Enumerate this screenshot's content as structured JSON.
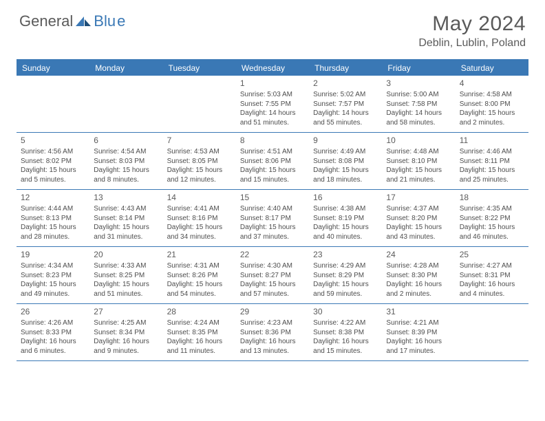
{
  "brand": {
    "general": "General",
    "blue": "Blu",
    "e": "e"
  },
  "title": "May 2024",
  "location": "Deblin, Lublin, Poland",
  "daynames": [
    "Sunday",
    "Monday",
    "Tuesday",
    "Wednesday",
    "Thursday",
    "Friday",
    "Saturday"
  ],
  "colors": {
    "accent": "#3a78b5",
    "text": "#4d4d4d",
    "heading": "#5a5a5a",
    "background": "#ffffff"
  },
  "weeks": [
    [
      null,
      null,
      null,
      {
        "n": "1",
        "sr": "Sunrise: 5:03 AM",
        "ss": "Sunset: 7:55 PM",
        "dl1": "Daylight: 14 hours",
        "dl2": "and 51 minutes."
      },
      {
        "n": "2",
        "sr": "Sunrise: 5:02 AM",
        "ss": "Sunset: 7:57 PM",
        "dl1": "Daylight: 14 hours",
        "dl2": "and 55 minutes."
      },
      {
        "n": "3",
        "sr": "Sunrise: 5:00 AM",
        "ss": "Sunset: 7:58 PM",
        "dl1": "Daylight: 14 hours",
        "dl2": "and 58 minutes."
      },
      {
        "n": "4",
        "sr": "Sunrise: 4:58 AM",
        "ss": "Sunset: 8:00 PM",
        "dl1": "Daylight: 15 hours",
        "dl2": "and 2 minutes."
      }
    ],
    [
      {
        "n": "5",
        "sr": "Sunrise: 4:56 AM",
        "ss": "Sunset: 8:02 PM",
        "dl1": "Daylight: 15 hours",
        "dl2": "and 5 minutes."
      },
      {
        "n": "6",
        "sr": "Sunrise: 4:54 AM",
        "ss": "Sunset: 8:03 PM",
        "dl1": "Daylight: 15 hours",
        "dl2": "and 8 minutes."
      },
      {
        "n": "7",
        "sr": "Sunrise: 4:53 AM",
        "ss": "Sunset: 8:05 PM",
        "dl1": "Daylight: 15 hours",
        "dl2": "and 12 minutes."
      },
      {
        "n": "8",
        "sr": "Sunrise: 4:51 AM",
        "ss": "Sunset: 8:06 PM",
        "dl1": "Daylight: 15 hours",
        "dl2": "and 15 minutes."
      },
      {
        "n": "9",
        "sr": "Sunrise: 4:49 AM",
        "ss": "Sunset: 8:08 PM",
        "dl1": "Daylight: 15 hours",
        "dl2": "and 18 minutes."
      },
      {
        "n": "10",
        "sr": "Sunrise: 4:48 AM",
        "ss": "Sunset: 8:10 PM",
        "dl1": "Daylight: 15 hours",
        "dl2": "and 21 minutes."
      },
      {
        "n": "11",
        "sr": "Sunrise: 4:46 AM",
        "ss": "Sunset: 8:11 PM",
        "dl1": "Daylight: 15 hours",
        "dl2": "and 25 minutes."
      }
    ],
    [
      {
        "n": "12",
        "sr": "Sunrise: 4:44 AM",
        "ss": "Sunset: 8:13 PM",
        "dl1": "Daylight: 15 hours",
        "dl2": "and 28 minutes."
      },
      {
        "n": "13",
        "sr": "Sunrise: 4:43 AM",
        "ss": "Sunset: 8:14 PM",
        "dl1": "Daylight: 15 hours",
        "dl2": "and 31 minutes."
      },
      {
        "n": "14",
        "sr": "Sunrise: 4:41 AM",
        "ss": "Sunset: 8:16 PM",
        "dl1": "Daylight: 15 hours",
        "dl2": "and 34 minutes."
      },
      {
        "n": "15",
        "sr": "Sunrise: 4:40 AM",
        "ss": "Sunset: 8:17 PM",
        "dl1": "Daylight: 15 hours",
        "dl2": "and 37 minutes."
      },
      {
        "n": "16",
        "sr": "Sunrise: 4:38 AM",
        "ss": "Sunset: 8:19 PM",
        "dl1": "Daylight: 15 hours",
        "dl2": "and 40 minutes."
      },
      {
        "n": "17",
        "sr": "Sunrise: 4:37 AM",
        "ss": "Sunset: 8:20 PM",
        "dl1": "Daylight: 15 hours",
        "dl2": "and 43 minutes."
      },
      {
        "n": "18",
        "sr": "Sunrise: 4:35 AM",
        "ss": "Sunset: 8:22 PM",
        "dl1": "Daylight: 15 hours",
        "dl2": "and 46 minutes."
      }
    ],
    [
      {
        "n": "19",
        "sr": "Sunrise: 4:34 AM",
        "ss": "Sunset: 8:23 PM",
        "dl1": "Daylight: 15 hours",
        "dl2": "and 49 minutes."
      },
      {
        "n": "20",
        "sr": "Sunrise: 4:33 AM",
        "ss": "Sunset: 8:25 PM",
        "dl1": "Daylight: 15 hours",
        "dl2": "and 51 minutes."
      },
      {
        "n": "21",
        "sr": "Sunrise: 4:31 AM",
        "ss": "Sunset: 8:26 PM",
        "dl1": "Daylight: 15 hours",
        "dl2": "and 54 minutes."
      },
      {
        "n": "22",
        "sr": "Sunrise: 4:30 AM",
        "ss": "Sunset: 8:27 PM",
        "dl1": "Daylight: 15 hours",
        "dl2": "and 57 minutes."
      },
      {
        "n": "23",
        "sr": "Sunrise: 4:29 AM",
        "ss": "Sunset: 8:29 PM",
        "dl1": "Daylight: 15 hours",
        "dl2": "and 59 minutes."
      },
      {
        "n": "24",
        "sr": "Sunrise: 4:28 AM",
        "ss": "Sunset: 8:30 PM",
        "dl1": "Daylight: 16 hours",
        "dl2": "and 2 minutes."
      },
      {
        "n": "25",
        "sr": "Sunrise: 4:27 AM",
        "ss": "Sunset: 8:31 PM",
        "dl1": "Daylight: 16 hours",
        "dl2": "and 4 minutes."
      }
    ],
    [
      {
        "n": "26",
        "sr": "Sunrise: 4:26 AM",
        "ss": "Sunset: 8:33 PM",
        "dl1": "Daylight: 16 hours",
        "dl2": "and 6 minutes."
      },
      {
        "n": "27",
        "sr": "Sunrise: 4:25 AM",
        "ss": "Sunset: 8:34 PM",
        "dl1": "Daylight: 16 hours",
        "dl2": "and 9 minutes."
      },
      {
        "n": "28",
        "sr": "Sunrise: 4:24 AM",
        "ss": "Sunset: 8:35 PM",
        "dl1": "Daylight: 16 hours",
        "dl2": "and 11 minutes."
      },
      {
        "n": "29",
        "sr": "Sunrise: 4:23 AM",
        "ss": "Sunset: 8:36 PM",
        "dl1": "Daylight: 16 hours",
        "dl2": "and 13 minutes."
      },
      {
        "n": "30",
        "sr": "Sunrise: 4:22 AM",
        "ss": "Sunset: 8:38 PM",
        "dl1": "Daylight: 16 hours",
        "dl2": "and 15 minutes."
      },
      {
        "n": "31",
        "sr": "Sunrise: 4:21 AM",
        "ss": "Sunset: 8:39 PM",
        "dl1": "Daylight: 16 hours",
        "dl2": "and 17 minutes."
      },
      null
    ]
  ]
}
